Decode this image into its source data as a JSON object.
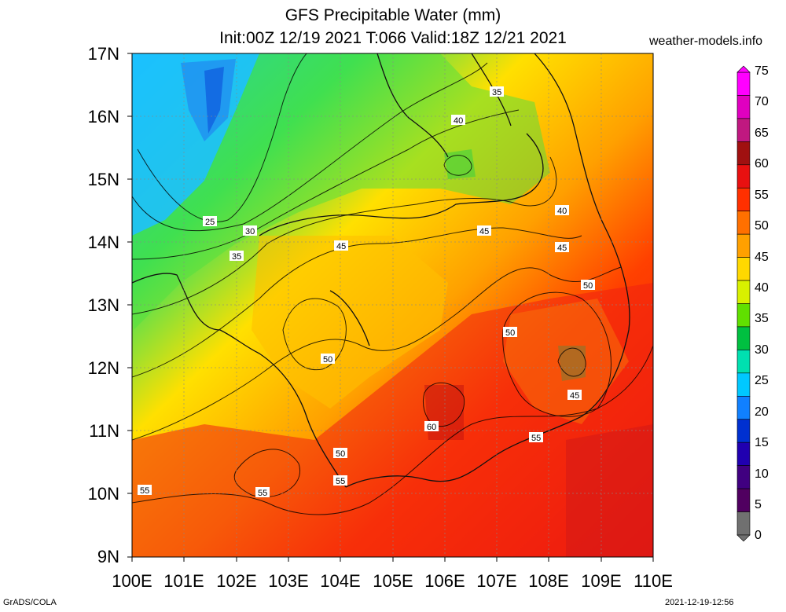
{
  "title_line1": "GFS Precipitable Water (mm)",
  "title_line2": "Init:00Z 12/19 2021 T:066 Valid:18Z 12/21 2021",
  "site": "weather-models.info",
  "credit": "GrADS/COLA",
  "timestamp": "2021-12-19-12:56",
  "lat_labels": [
    "17N",
    "16N",
    "15N",
    "14N",
    "13N",
    "12N",
    "11N",
    "10N",
    "9N"
  ],
  "lon_labels": [
    "100E",
    "101E",
    "102E",
    "103E",
    "104E",
    "105E",
    "106E",
    "107E",
    "108E",
    "109E",
    "110E"
  ],
  "colorbar": {
    "labels": [
      "75",
      "70",
      "65",
      "60",
      "55",
      "50",
      "45",
      "40",
      "35",
      "30",
      "25",
      "20",
      "15",
      "10",
      "5",
      "0"
    ],
    "colors": [
      "#ff00ff",
      "#e000c0",
      "#c01880",
      "#a01010",
      "#e81010",
      "#ff3000",
      "#ff7000",
      "#ffa000",
      "#ffd800",
      "#d8f000",
      "#60e000",
      "#00c040",
      "#00e0b0",
      "#00c8ff",
      "#1080ff",
      "#0030d0",
      "#2000b0",
      "#400080",
      "#500060",
      "#707070"
    ]
  },
  "contour_labels": [
    "25",
    "30",
    "35",
    "40",
    "35",
    "40",
    "45",
    "45",
    "45",
    "45",
    "50",
    "50",
    "50",
    "50",
    "45",
    "55",
    "60",
    "55",
    "55",
    "55",
    "50",
    "55"
  ],
  "legend_colors": {
    "dry": "#0090ff",
    "mid": "#30e030",
    "moist": "#ffe000",
    "wet": "#ff2000"
  }
}
